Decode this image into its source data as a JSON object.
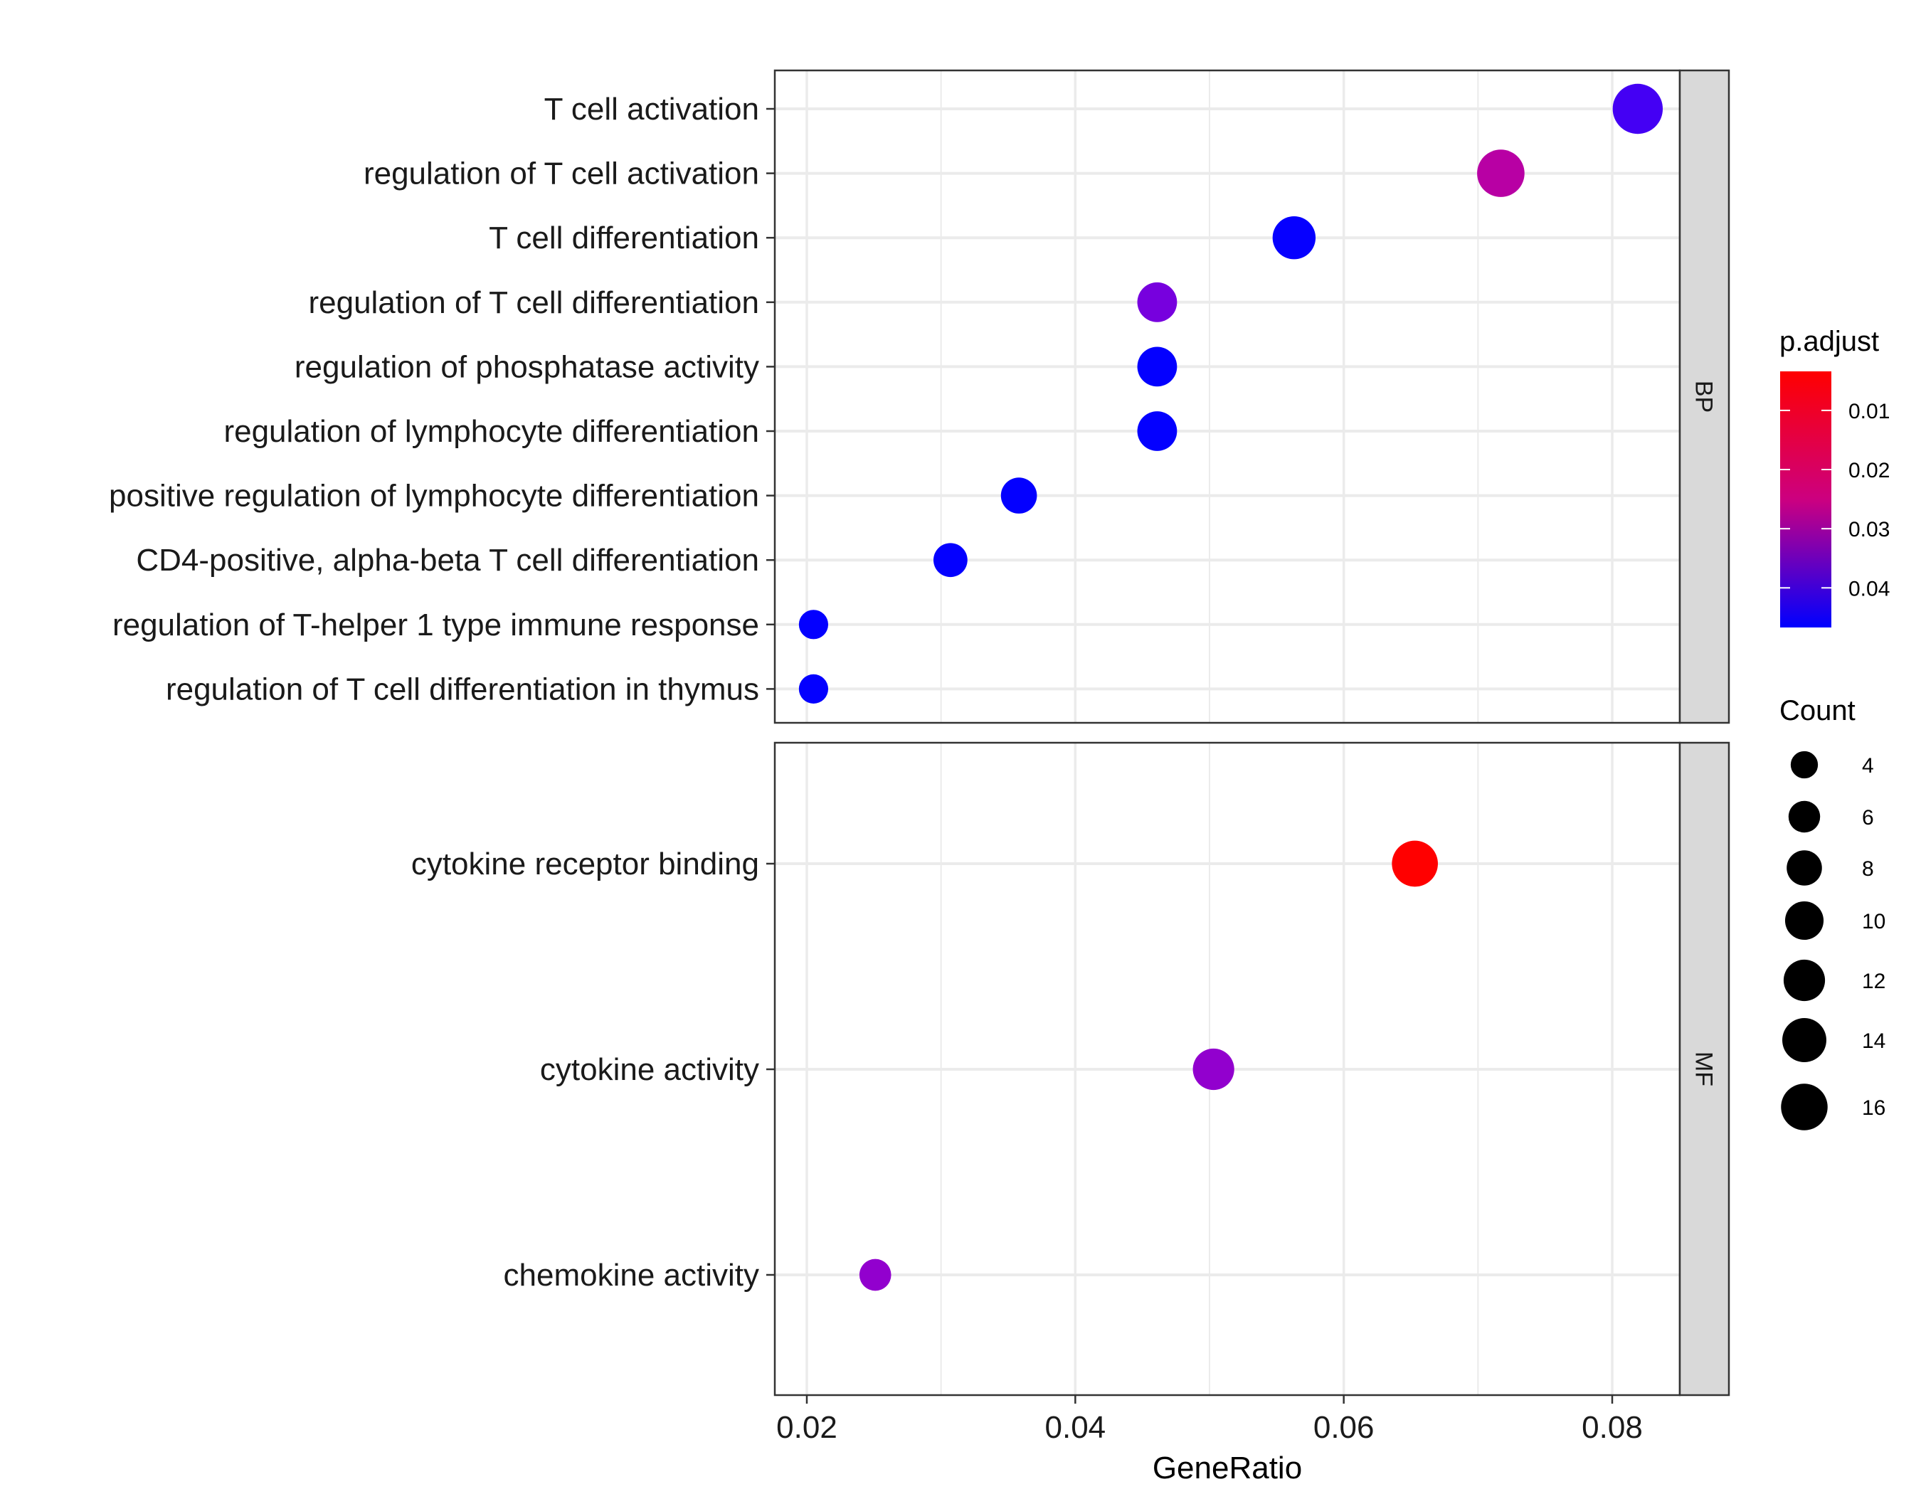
{
  "chart_data": {
    "type": "scatter",
    "subtype": "dotplot",
    "title": "",
    "xlabel": "GeneRatio",
    "ylabel": "",
    "xlim": [
      0.0175,
      0.0885
    ],
    "x_ticks": [
      0.02,
      0.04,
      0.06,
      0.08
    ],
    "x_tick_labels": [
      "0.02",
      "0.04",
      "0.06",
      "0.08"
    ],
    "grid": true,
    "facets": [
      {
        "name": "BP",
        "terms": [
          {
            "label": "T cell activation",
            "gene_ratio": 0.0819,
            "count": 16,
            "p_adjust": 0.043,
            "color": "#4400F4"
          },
          {
            "label": "regulation of T cell activation",
            "gene_ratio": 0.0717,
            "count": 14,
            "p_adjust": 0.026,
            "color": "#B800A4"
          },
          {
            "label": "T cell differentiation",
            "gene_ratio": 0.0563,
            "count": 11,
            "p_adjust": 0.046,
            "color": "#0600FF"
          },
          {
            "label": "regulation of T cell differentiation",
            "gene_ratio": 0.0461,
            "count": 9,
            "p_adjust": 0.038,
            "color": "#7700DE"
          },
          {
            "label": "regulation of phosphatase activity",
            "gene_ratio": 0.0461,
            "count": 9,
            "p_adjust": 0.046,
            "color": "#0400FF"
          },
          {
            "label": "regulation of lymphocyte differentiation",
            "gene_ratio": 0.0461,
            "count": 9,
            "p_adjust": 0.046,
            "color": "#0400FF"
          },
          {
            "label": "positive regulation of lymphocyte differentiation",
            "gene_ratio": 0.0358,
            "count": 7,
            "p_adjust": 0.046,
            "color": "#0400FF"
          },
          {
            "label": "CD4-positive, alpha-beta T cell differentiation",
            "gene_ratio": 0.0307,
            "count": 6,
            "p_adjust": 0.046,
            "color": "#0400FF"
          },
          {
            "label": "regulation of T-helper 1 type immune response",
            "gene_ratio": 0.0205,
            "count": 4,
            "p_adjust": 0.046,
            "color": "#0400FF"
          },
          {
            "label": "regulation of T cell differentiation in thymus",
            "gene_ratio": 0.0205,
            "count": 4,
            "p_adjust": 0.046,
            "color": "#0400FF"
          }
        ]
      },
      {
        "name": "MF",
        "terms": [
          {
            "label": "cytokine receptor binding",
            "gene_ratio": 0.0653,
            "count": 13,
            "p_adjust": 0.004,
            "color": "#FF0000"
          },
          {
            "label": "cytokine activity",
            "gene_ratio": 0.0503,
            "count": 10,
            "p_adjust": 0.035,
            "color": "#9200CE"
          },
          {
            "label": "chemokine activity",
            "gene_ratio": 0.0251,
            "count": 5,
            "p_adjust": 0.035,
            "color": "#9200CE"
          }
        ]
      }
    ],
    "color_legend": {
      "title": "p.adjust",
      "range": [
        0.0034,
        0.0467
      ],
      "low_color": "#FF0000",
      "high_color": "#0000FF",
      "ticks": [
        0.01,
        0.02,
        0.03,
        0.04
      ],
      "tick_labels": [
        "0.01",
        "0.02",
        "0.03",
        "0.04"
      ]
    },
    "size_legend": {
      "title": "Count",
      "values": [
        4,
        6,
        8,
        10,
        12,
        14,
        16
      ],
      "labels": [
        "4",
        "6",
        "8",
        "10",
        "12",
        "14",
        "16"
      ]
    },
    "legend_position": "right"
  }
}
